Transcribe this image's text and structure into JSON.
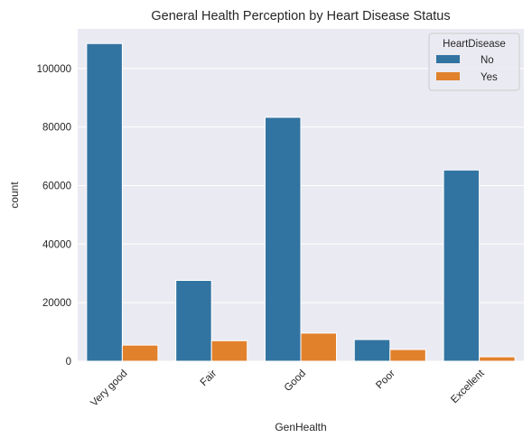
{
  "chart_data": {
    "type": "bar",
    "title": "General Health Perception by Heart Disease Status",
    "xlabel": "GenHealth",
    "ylabel": "count",
    "categories": [
      "Very good",
      "Fair",
      "Good",
      "Poor",
      "Excellent"
    ],
    "series": [
      {
        "name": "No",
        "color": "#3274a1",
        "values": [
          108500,
          27600,
          83300,
          7400,
          65300
        ]
      },
      {
        "name": "Yes",
        "color": "#e1812c",
        "values": [
          5500,
          7000,
          9600,
          4000,
          1500
        ]
      }
    ],
    "ylim": [
      0,
      113500
    ],
    "yticks": [
      0,
      20000,
      40000,
      60000,
      80000,
      100000
    ],
    "ytick_labels": [
      "0",
      "20000",
      "40000",
      "60000",
      "80000",
      "100000"
    ],
    "grid": true,
    "legend": {
      "title": "HeartDisease",
      "placement": "top-right"
    },
    "background_color": "#eaeaf2",
    "grid_color": "#ffffff"
  }
}
